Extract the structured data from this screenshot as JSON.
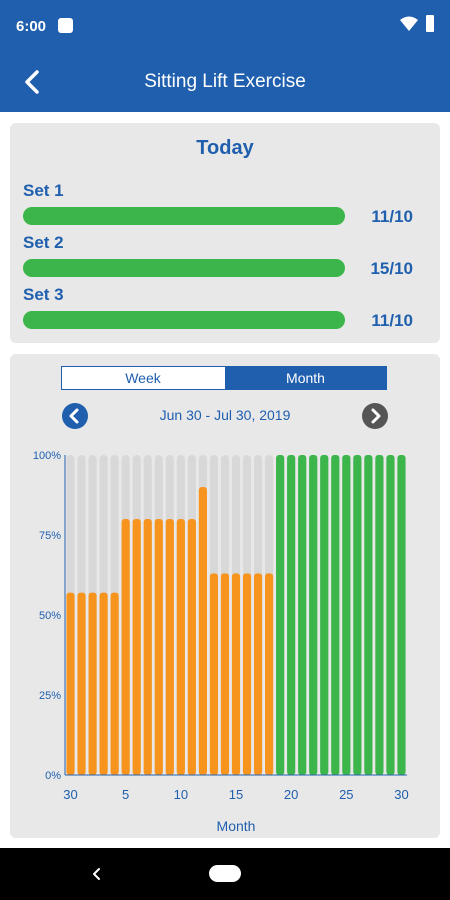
{
  "status_bar": {
    "time": "6:00"
  },
  "app_bar": {
    "title": "Sitting Lift Exercise"
  },
  "today": {
    "title": "Today",
    "sets": [
      {
        "label": "Set 1",
        "value": "11/10",
        "progress": 1.0
      },
      {
        "label": "Set 2",
        "value": "15/10",
        "progress": 1.0
      },
      {
        "label": "Set 3",
        "value": "11/10",
        "progress": 1.0
      }
    ]
  },
  "period_toggle": {
    "week_label": "Week",
    "month_label": "Month",
    "selected": "Month"
  },
  "date_range": "Jun 30 - Jul 30, 2019",
  "colors": {
    "primary": "#1f5fae",
    "orange": "#f7941d",
    "green": "#3cb54a",
    "track": "#d8d8d8",
    "card": "#e8e8e8"
  },
  "chart_data": {
    "type": "bar",
    "ylim": [
      0,
      100
    ],
    "y_ticks": [
      "0%",
      "25%",
      "50%",
      "75%",
      "100%"
    ],
    "y_tick_values": [
      0,
      25,
      50,
      75,
      100
    ],
    "x_ticks": [
      "30",
      "5",
      "10",
      "15",
      "20",
      "25",
      "30"
    ],
    "x_tick_indices": [
      0,
      5,
      10,
      15,
      20,
      25,
      30
    ],
    "xlabel": "Month",
    "ylabel": "",
    "grid": false,
    "categories": [
      "30",
      "1",
      "2",
      "3",
      "4",
      "5",
      "6",
      "7",
      "8",
      "9",
      "10",
      "11",
      "12",
      "13",
      "14",
      "15",
      "16",
      "17",
      "18",
      "19",
      "20",
      "21",
      "22",
      "23",
      "24",
      "25",
      "26",
      "27",
      "28",
      "29",
      "30"
    ],
    "values": [
      57,
      57,
      57,
      57,
      57,
      80,
      80,
      80,
      80,
      80,
      80,
      80,
      90,
      63,
      63,
      63,
      63,
      63,
      63,
      100,
      100,
      100,
      100,
      100,
      100,
      100,
      100,
      100,
      100,
      100,
      100
    ],
    "bar_colors": [
      "orange",
      "orange",
      "orange",
      "orange",
      "orange",
      "orange",
      "orange",
      "orange",
      "orange",
      "orange",
      "orange",
      "orange",
      "orange",
      "orange",
      "orange",
      "orange",
      "orange",
      "orange",
      "orange",
      "green",
      "green",
      "green",
      "green",
      "green",
      "green",
      "green",
      "green",
      "green",
      "green",
      "green",
      "green"
    ]
  }
}
